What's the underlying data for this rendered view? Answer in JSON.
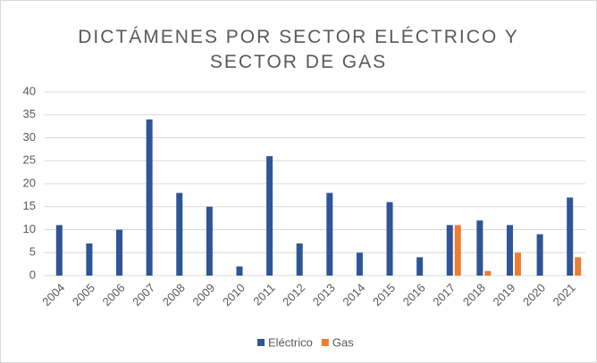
{
  "chart_data": {
    "type": "bar",
    "title": "DICTÁMENES POR SECTOR ELÉCTRICO Y SECTOR DE GAS",
    "categories": [
      "2004",
      "2005",
      "2006",
      "2007",
      "2008",
      "2009",
      "2010",
      "2011",
      "2012",
      "2013",
      "2014",
      "2015",
      "2016",
      "2017",
      "2018",
      "2019",
      "2020",
      "2021"
    ],
    "series": [
      {
        "name": "Eléctrico",
        "color": "#2f5597",
        "values": [
          11,
          7,
          10,
          34,
          18,
          15,
          2,
          26,
          7,
          18,
          5,
          16,
          4,
          11,
          12,
          11,
          9,
          17
        ]
      },
      {
        "name": "Gas",
        "color": "#ed7d31",
        "values": [
          null,
          null,
          null,
          null,
          null,
          null,
          null,
          null,
          null,
          null,
          null,
          null,
          null,
          11,
          1,
          5,
          null,
          4
        ]
      }
    ],
    "ylim": [
      0,
      40
    ],
    "yticks": [
      0,
      5,
      10,
      15,
      20,
      25,
      30,
      35,
      40
    ],
    "grid": true,
    "legend": "bottom"
  }
}
